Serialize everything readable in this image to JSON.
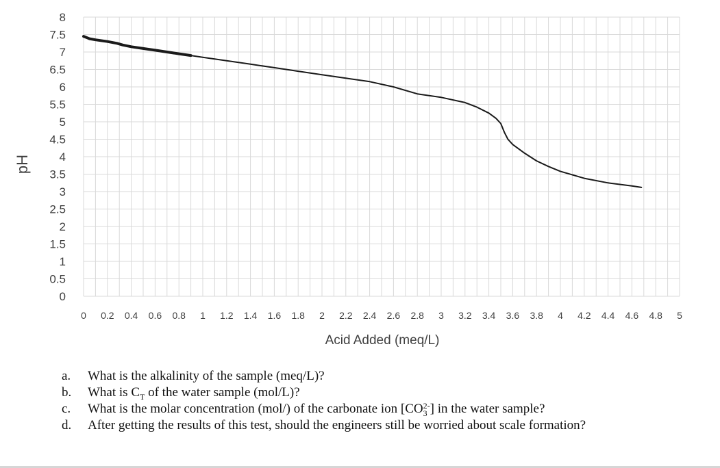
{
  "chart_data": {
    "type": "line",
    "title": "",
    "xlabel": "Acid Added (meq/L)",
    "ylabel": "pH",
    "xlim": [
      0,
      5
    ],
    "ylim": [
      0,
      8
    ],
    "x_ticks": [
      "0",
      "0.2",
      "0.4",
      "0.6",
      "0.8",
      "1",
      "1.2",
      "1.4",
      "1.6",
      "1.8",
      "2",
      "2.2",
      "2.4",
      "2.6",
      "2.8",
      "3",
      "3.2",
      "3.4",
      "3.6",
      "3.8",
      "4",
      "4.2",
      "4.4",
      "4.6",
      "4.8",
      "5"
    ],
    "y_ticks": [
      "0",
      "0.5",
      "1",
      "1.5",
      "2",
      "2.5",
      "3",
      "3.5",
      "4",
      "4.5",
      "5",
      "5.5",
      "6",
      "6.5",
      "7",
      "7.5",
      "8"
    ],
    "grid": true,
    "legend": "none",
    "line_color": "#1a1a1a",
    "series": [
      {
        "x": [
          0,
          0.05,
          0.1,
          0.2,
          0.28,
          0.33,
          0.4,
          0.5,
          0.6,
          0.8,
          0.9,
          1.0,
          1.2,
          1.4,
          1.6,
          1.8,
          2.0,
          2.2,
          2.4,
          2.6,
          2.8,
          3.0,
          3.2,
          3.3,
          3.4,
          3.46,
          3.5,
          3.53,
          3.56,
          3.6,
          3.7,
          3.8,
          3.9,
          4.0,
          4.2,
          4.4,
          4.6,
          4.68
        ],
        "y": [
          7.45,
          7.38,
          7.35,
          7.3,
          7.25,
          7.2,
          7.15,
          7.1,
          7.05,
          6.95,
          6.9,
          6.85,
          6.75,
          6.65,
          6.55,
          6.45,
          6.35,
          6.25,
          6.15,
          6.0,
          5.8,
          5.7,
          5.55,
          5.42,
          5.25,
          5.1,
          4.95,
          4.7,
          4.5,
          4.35,
          4.1,
          3.88,
          3.72,
          3.58,
          3.38,
          3.25,
          3.16,
          3.12
        ]
      }
    ]
  },
  "questions": [
    {
      "letter": "a.",
      "pre": "What is the alkalinity of the sample (meq/L)?"
    },
    {
      "letter": "b.",
      "pre": "What is C",
      "sub": "T",
      "post": " of the water sample (mol/L)?"
    },
    {
      "letter": "c.",
      "pre": "What is the molar concentration (mol/) of the carbonate ion [CO",
      "sub": "3",
      "sup": "2-",
      "post": "] in the water sample?"
    },
    {
      "letter": "d.",
      "pre": "After getting the results of this test, should the engineers still be worried about scale formation?"
    }
  ]
}
